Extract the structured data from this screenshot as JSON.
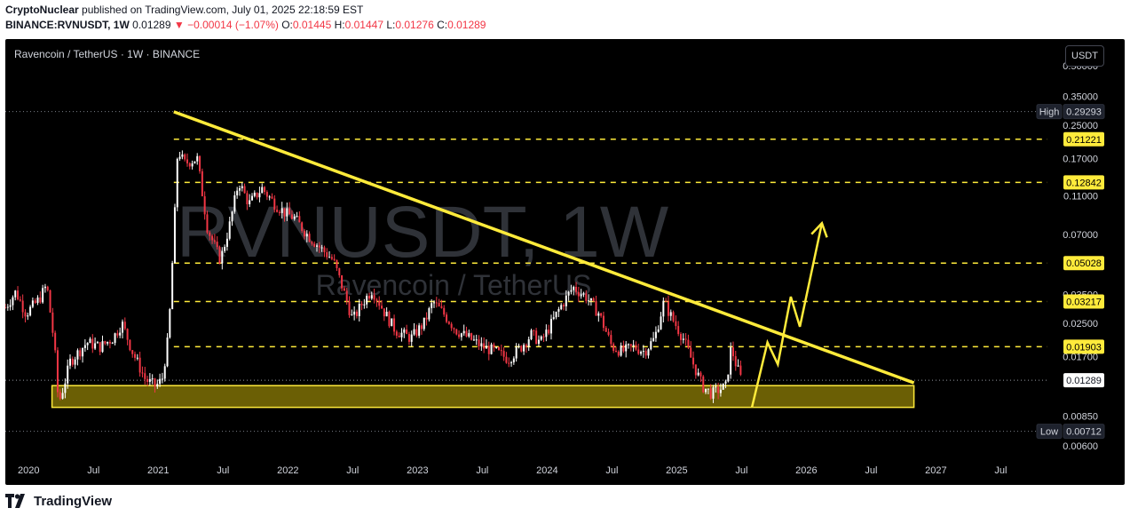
{
  "header": {
    "publisher": "CryptoNuclear",
    "published_text": "published on TradingView.com, July 01, 2025 22:18:59 EST",
    "symbol": "BINANCE:RVNUSDT, 1W",
    "last": "0.01289",
    "change": "−0.00014 (−1.07%)",
    "o_label": "O:",
    "o": "0.01445",
    "h_label": "H:",
    "h": "0.01447",
    "l_label": "L:",
    "l": "0.01276",
    "c_label": "C:",
    "c": "0.01289"
  },
  "pane": {
    "title": "Ravencoin / TetherUS · 1W · BINANCE",
    "currency_button": "USDT",
    "watermark_main": "RVNUSDT, 1W",
    "watermark_sub": "Ravencoin / TetherUS"
  },
  "footer": {
    "brand": "TradingView"
  },
  "colors": {
    "background": "#000000",
    "up": "#ffffff",
    "down": "#f23645",
    "yellow": "#ffeb3b",
    "support_zone": "#6b5f05",
    "axis_text": "#d1d4dc"
  },
  "chart_data": {
    "type": "candlestick",
    "title": "Ravencoin / TetherUS · 1W · BINANCE",
    "y_scale": "log",
    "ylim": [
      0.0052,
      0.68
    ],
    "xlim": [
      2019.82,
      2027.86
    ],
    "x_ticks": [
      {
        "t": 2020.0,
        "label": "2020"
      },
      {
        "t": 2020.5,
        "label": "Jul"
      },
      {
        "t": 2021.0,
        "label": "2021"
      },
      {
        "t": 2021.5,
        "label": "Jul"
      },
      {
        "t": 2022.0,
        "label": "2022"
      },
      {
        "t": 2022.5,
        "label": "Jul"
      },
      {
        "t": 2023.0,
        "label": "2023"
      },
      {
        "t": 2023.5,
        "label": "Jul"
      },
      {
        "t": 2024.0,
        "label": "2024"
      },
      {
        "t": 2024.5,
        "label": "Jul"
      },
      {
        "t": 2025.0,
        "label": "2025"
      },
      {
        "t": 2025.5,
        "label": "Jul"
      },
      {
        "t": 2026.0,
        "label": "2026"
      },
      {
        "t": 2026.5,
        "label": "Jul"
      },
      {
        "t": 2027.0,
        "label": "2027"
      },
      {
        "t": 2027.5,
        "label": "Jul"
      }
    ],
    "y_ticks": [
      "0.50000",
      "0.35000",
      "0.25000",
      "0.17000",
      "0.11000",
      "0.07000",
      "0.03500",
      "0.02500",
      "0.01700",
      "0.00850",
      "0.00600"
    ],
    "price_tags": [
      {
        "value": 0.29293,
        "label": "0.29293",
        "tag": "High",
        "style": "dark"
      },
      {
        "value": 0.21221,
        "label": "0.21221",
        "style": "yellow"
      },
      {
        "value": 0.12842,
        "label": "0.12842",
        "style": "yellow"
      },
      {
        "value": 0.05028,
        "label": "0.05028",
        "style": "yellow"
      },
      {
        "value": 0.03217,
        "label": "0.03217",
        "style": "yellow"
      },
      {
        "value": 0.01903,
        "label": "0.01903",
        "style": "yellow"
      },
      {
        "value": 0.01289,
        "label": "0.01289",
        "style": "white"
      },
      {
        "value": 0.00712,
        "label": "0.00712",
        "tag": "Low",
        "style": "dark"
      }
    ],
    "horizontal_levels": [
      0.21221,
      0.12842,
      0.05028,
      0.03217,
      0.01903
    ],
    "high_low_dotted": [
      0.29293,
      0.00712
    ],
    "current_price": 0.01289,
    "descending_trendline": [
      [
        2021.12,
        0.292
      ],
      [
        2026.83,
        0.0125
      ]
    ],
    "support_zone": {
      "t0": 2020.18,
      "t1": 2026.83,
      "low": 0.0094,
      "high": 0.0121
    },
    "projection_path": [
      [
        2025.58,
        0.0094
      ],
      [
        2025.7,
        0.02
      ],
      [
        2025.78,
        0.0155
      ],
      [
        2025.88,
        0.034
      ],
      [
        2025.95,
        0.024
      ],
      [
        2026.12,
        0.08
      ]
    ],
    "price_path": [
      [
        2019.82,
        0.03
      ],
      [
        2019.9,
        0.036
      ],
      [
        2019.98,
        0.028
      ],
      [
        2020.08,
        0.033
      ],
      [
        2020.14,
        0.039
      ],
      [
        2020.2,
        0.019
      ],
      [
        2020.23,
        0.0098
      ],
      [
        2020.27,
        0.012
      ],
      [
        2020.32,
        0.016
      ],
      [
        2020.45,
        0.02
      ],
      [
        2020.55,
        0.019
      ],
      [
        2020.65,
        0.021
      ],
      [
        2020.72,
        0.025
      ],
      [
        2020.8,
        0.018
      ],
      [
        2020.9,
        0.013
      ],
      [
        2020.98,
        0.012
      ],
      [
        2021.03,
        0.013
      ],
      [
        2021.08,
        0.022
      ],
      [
        2021.12,
        0.07
      ],
      [
        2021.15,
        0.19
      ],
      [
        2021.2,
        0.16
      ],
      [
        2021.3,
        0.17
      ],
      [
        2021.38,
        0.075
      ],
      [
        2021.48,
        0.052
      ],
      [
        2021.55,
        0.078
      ],
      [
        2021.62,
        0.13
      ],
      [
        2021.7,
        0.1
      ],
      [
        2021.8,
        0.12
      ],
      [
        2021.9,
        0.1
      ],
      [
        2021.98,
        0.09
      ],
      [
        2022.05,
        0.085
      ],
      [
        2022.15,
        0.07
      ],
      [
        2022.25,
        0.06
      ],
      [
        2022.35,
        0.052
      ],
      [
        2022.42,
        0.038
      ],
      [
        2022.5,
        0.026
      ],
      [
        2022.58,
        0.032
      ],
      [
        2022.65,
        0.037
      ],
      [
        2022.75,
        0.028
      ],
      [
        2022.83,
        0.023
      ],
      [
        2022.95,
        0.021
      ],
      [
        2023.05,
        0.025
      ],
      [
        2023.12,
        0.032
      ],
      [
        2023.2,
        0.028
      ],
      [
        2023.3,
        0.023
      ],
      [
        2023.4,
        0.021
      ],
      [
        2023.5,
        0.019
      ],
      [
        2023.6,
        0.018
      ],
      [
        2023.7,
        0.0165
      ],
      [
        2023.8,
        0.019
      ],
      [
        2023.88,
        0.022
      ],
      [
        2023.95,
        0.02
      ],
      [
        2024.02,
        0.024
      ],
      [
        2024.1,
        0.03
      ],
      [
        2024.2,
        0.038
      ],
      [
        2024.3,
        0.034
      ],
      [
        2024.4,
        0.028
      ],
      [
        2024.5,
        0.019
      ],
      [
        2024.58,
        0.018
      ],
      [
        2024.67,
        0.019
      ],
      [
        2024.75,
        0.018
      ],
      [
        2024.83,
        0.021
      ],
      [
        2024.9,
        0.032
      ],
      [
        2024.97,
        0.026
      ],
      [
        2025.05,
        0.021
      ],
      [
        2025.12,
        0.016
      ],
      [
        2025.2,
        0.012
      ],
      [
        2025.27,
        0.011
      ],
      [
        2025.32,
        0.0115
      ],
      [
        2025.38,
        0.012
      ],
      [
        2025.42,
        0.019
      ],
      [
        2025.45,
        0.016
      ],
      [
        2025.5,
        0.01289
      ]
    ]
  }
}
